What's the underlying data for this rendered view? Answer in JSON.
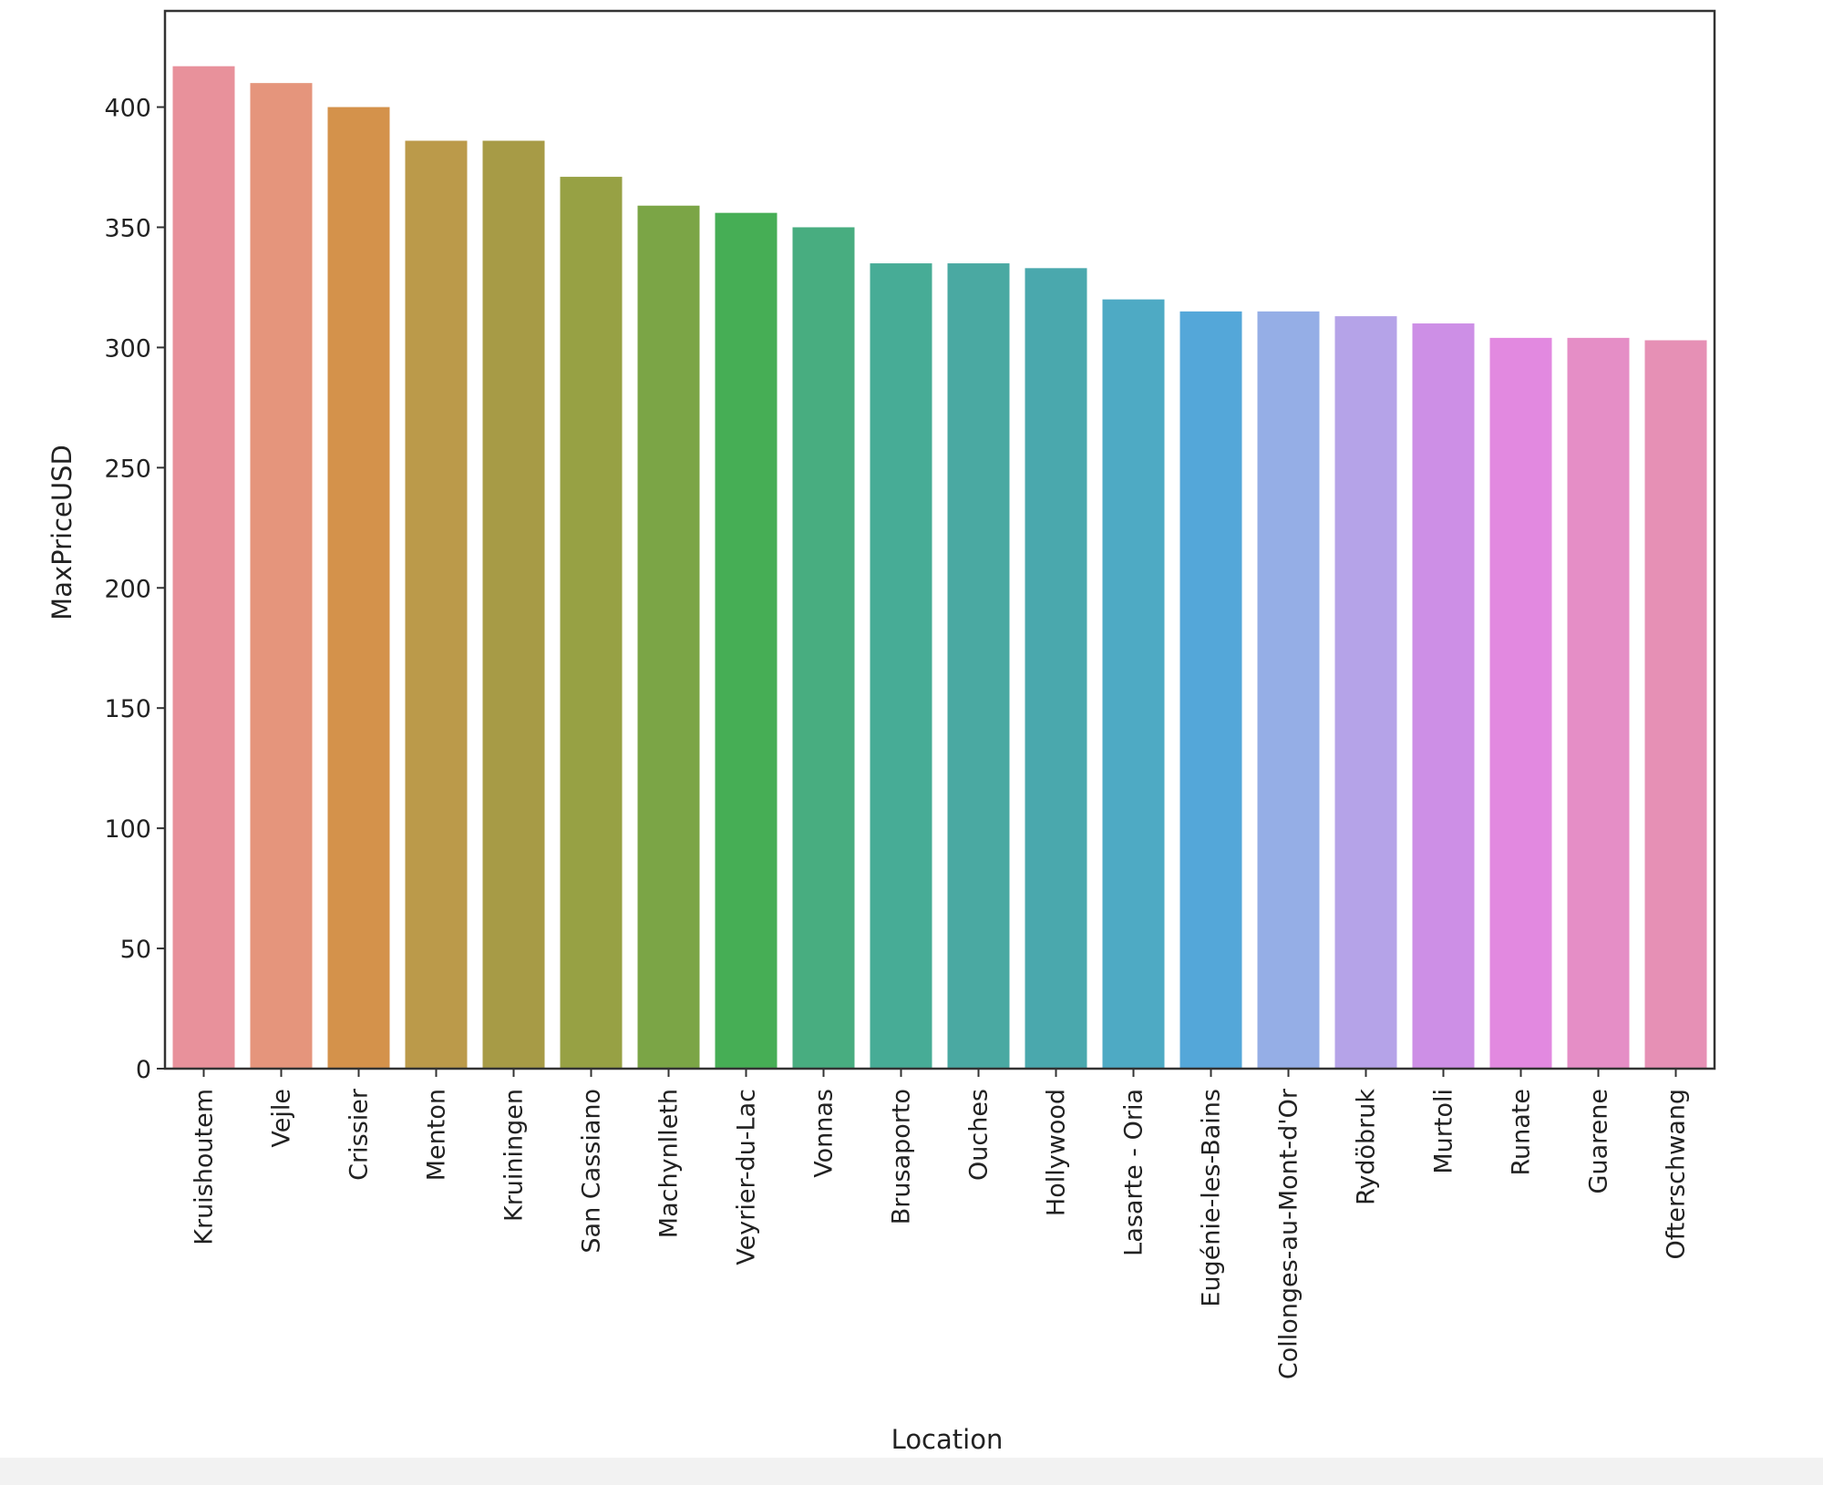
{
  "chart_data": {
    "type": "bar",
    "xlabel": "Location",
    "ylabel": "MaxPriceUSD",
    "ylim": [
      0,
      440
    ],
    "yticks": [
      0,
      50,
      100,
      150,
      200,
      250,
      300,
      350,
      400
    ],
    "grid": false,
    "legend": "none",
    "categories": [
      "Kruishoutem",
      "Vejle",
      "Crissier",
      "Menton",
      "Kruiningen",
      "San Cassiano",
      "Machynlleth",
      "Veyrier-du-Lac",
      "Vonnas",
      "Brusaporto",
      "Ouches",
      "Hollywood",
      "Lasarte - Oria",
      "Eugénie-les-Bains",
      "Collonges-au-Mont-d'Or",
      "Rydöbruk",
      "Murtoli",
      "Runate",
      "Guarene",
      "Ofterschwang"
    ],
    "values": [
      417,
      410,
      400,
      386,
      386,
      371,
      359,
      356,
      350,
      335,
      335,
      333,
      320,
      315,
      315,
      313,
      310,
      304,
      304,
      303
    ],
    "colors": [
      "#e8919b",
      "#e5957c",
      "#d4924b",
      "#bb9a4a",
      "#a79b46",
      "#97a144",
      "#7ba546",
      "#46ae55",
      "#48ad80",
      "#47ac96",
      "#4aa9a2",
      "#4aa8ad",
      "#4eaac4",
      "#54a7d9",
      "#95aee6",
      "#b5a3e8",
      "#cd8fe6",
      "#e289e0",
      "#e58ec6",
      "#e690b5"
    ]
  }
}
